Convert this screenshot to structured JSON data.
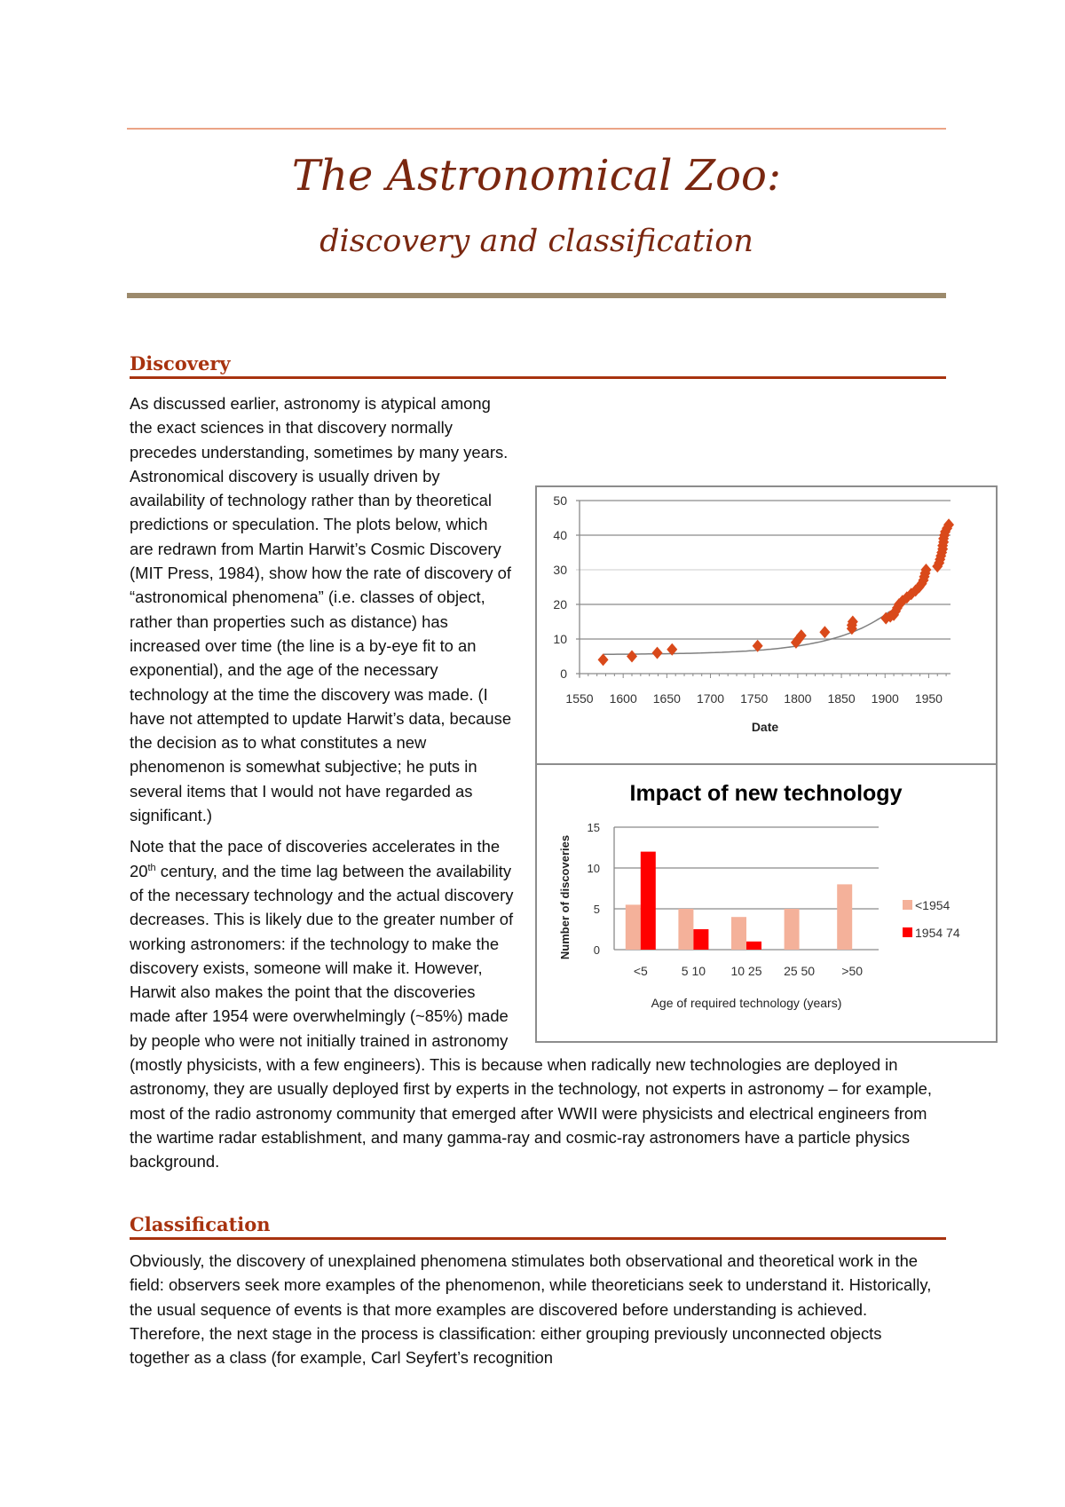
{
  "document": {
    "title": "The Astronomical Zoo:",
    "subtitle": "discovery and classification"
  },
  "discovery": {
    "heading": "Discovery",
    "p1": "As discussed earlier, astronomy is atypical among the exact sciences in that discovery normally precedes understanding, sometimes by many years. Astronomical discovery is usually driven by availability of technology rather than by theoretical predictions or speculation. The plots below, which are redrawn from Martin Harwit’s Cosmic Discovery (MIT Press, 1984), show how the rate of discovery of “astronomical phenomena” (i.e. classes of object, rather than properties such as distance) has increased over time (the line is a by-eye fit to an exponential), and the age of the necessary technology at the time the discovery was made. (I have not attempted to update Harwit’s data, because the decision as to what constitutes a new phenomenon is somewhat subjective; he puts in several items that I would not have regarded as significant.)",
    "p2a": "Note that the pace of discoveries accelerates in the 20",
    "p2sup": "th",
    "p2b": " century, and the time lag between the availability of the necessary technology and the actual discovery decreases. This is likely due to the greater number of working astronomers: if the technology to make the discovery exists, someone will make it. However, Harwit also makes the point that the discoveries made after 1954 were overwhelmingly (~85%) made by people who were not initially trained in astronomy (mostly physicists, with a few engineers). This is because when radically new technologies are deployed in astronomy, they are usually deployed first by experts in the technology, not experts in astronomy – for example, most of the radio astronomy community that emerged after WWII were physicists and electrical engineers from the wartime radar establishment, and many gamma-ray and cosmic-ray astronomers have a particle physics background."
  },
  "classification": {
    "heading": "Classification",
    "p1": "Obviously, the discovery of unexplained phenomena stimulates both observational and theoretical work in the field: observers seek more examples of the phenomenon, while theoreticians seek to understand it. Historically, the usual sequence of events is that more examples are discovered before understanding is achieved. Therefore, the next stage in the process is classification: either grouping previously unconnected objects together as a class (for example, Carl Seyfert’s recognition"
  },
  "chart_data": [
    {
      "type": "scatter",
      "title": "",
      "xlabel": "Date",
      "ylabel": "",
      "xlim": [
        1550,
        1975
      ],
      "ylim": [
        0,
        50
      ],
      "xticks": [
        1550,
        1600,
        1650,
        1700,
        1750,
        1800,
        1850,
        1900,
        1950
      ],
      "yticks": [
        0,
        10,
        20,
        30,
        40,
        50
      ],
      "grid": true,
      "trendline": "exponential",
      "marker_color": "#d9491a",
      "points": [
        [
          1577,
          4
        ],
        [
          1610,
          5
        ],
        [
          1639,
          6
        ],
        [
          1656,
          7
        ],
        [
          1754,
          8
        ],
        [
          1798,
          9
        ],
        [
          1801,
          10
        ],
        [
          1804,
          11
        ],
        [
          1831,
          12
        ],
        [
          1862,
          13
        ],
        [
          1862,
          14
        ],
        [
          1863,
          15
        ],
        [
          1901,
          16
        ],
        [
          1906,
          16.5
        ],
        [
          1910,
          17
        ],
        [
          1912,
          18
        ],
        [
          1914,
          19
        ],
        [
          1916,
          20
        ],
        [
          1920,
          21
        ],
        [
          1925,
          22
        ],
        [
          1930,
          23
        ],
        [
          1935,
          24
        ],
        [
          1939,
          25
        ],
        [
          1942,
          26
        ],
        [
          1944,
          27
        ],
        [
          1945,
          28
        ],
        [
          1946,
          29
        ],
        [
          1947,
          30
        ],
        [
          1960,
          31
        ],
        [
          1962,
          32
        ],
        [
          1963,
          33
        ],
        [
          1964,
          34
        ],
        [
          1965,
          35
        ],
        [
          1966,
          36
        ],
        [
          1966,
          37
        ],
        [
          1967,
          38
        ],
        [
          1967,
          39
        ],
        [
          1968,
          40
        ],
        [
          1969,
          41
        ],
        [
          1971,
          42
        ],
        [
          1973,
          43
        ]
      ]
    },
    {
      "type": "bar",
      "title": "Impact of new technology",
      "xlabel": "Age of required technology (years)",
      "ylabel": "Number of discoveries",
      "ylim": [
        0,
        15
      ],
      "yticks": [
        0,
        5,
        10,
        15
      ],
      "grid": true,
      "legend": "right",
      "categories": [
        "<5",
        "5 10",
        "10 25",
        "25 50",
        ">50"
      ],
      "series": [
        {
          "name": "<1954",
          "color": "#f4b19a",
          "values": [
            5.5,
            5,
            4,
            5,
            8
          ]
        },
        {
          "name": "1954 74",
          "color": "#ff0000",
          "values": [
            12,
            2.5,
            1,
            0,
            0
          ]
        }
      ]
    }
  ]
}
